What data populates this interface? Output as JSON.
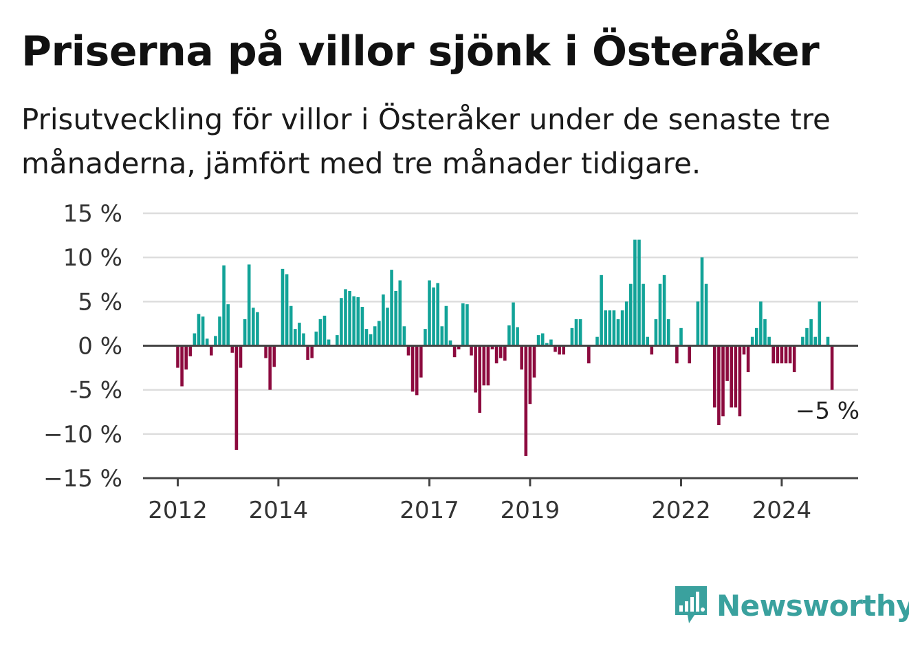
{
  "title": "Priserna på villor sjönk i Österåker",
  "subtitle": "Prisutveckling för villor i Österåker under de senaste tre månaderna, jämfört med tre månader tidigare.",
  "brand": {
    "name": "Newsworthy",
    "icon": "newsworthy-logo-icon"
  },
  "colors": {
    "positive": "#12a398",
    "negative": "#8c0a3e",
    "brand": "#3aa19e",
    "grid": "#dddddd",
    "baseline": "#444444"
  },
  "chart_data": {
    "type": "bar",
    "frequency": "monthly",
    "start": "2012-01",
    "ylim": [
      -15,
      15
    ],
    "yticks": [
      15,
      10,
      5,
      0,
      -5,
      -10,
      -15
    ],
    "ytick_labels": [
      "15 %",
      "10 %",
      "5 %",
      "0 %",
      "-5 %",
      "−10 %",
      "−15 %"
    ],
    "xtick_labels": [
      "2012",
      "2014",
      "2017",
      "2019",
      "2022",
      "2024"
    ],
    "last_value_label": "−5 %",
    "grid": true,
    "values": [
      -2.5,
      -4.6,
      -2.7,
      -1.2,
      1.4,
      3.6,
      3.3,
      0.8,
      -1.1,
      1.1,
      3.3,
      9.1,
      4.7,
      -0.8,
      -11.8,
      -2.5,
      3.0,
      9.2,
      4.3,
      3.8,
      0.0,
      -1.4,
      -5.0,
      -2.4,
      0.0,
      8.7,
      8.1,
      4.5,
      1.9,
      2.6,
      1.4,
      -1.6,
      -1.4,
      1.6,
      3.0,
      3.4,
      0.7,
      0.0,
      1.2,
      5.4,
      6.4,
      6.2,
      5.6,
      5.5,
      4.4,
      1.9,
      1.3,
      2.2,
      2.8,
      5.8,
      4.3,
      8.6,
      6.2,
      7.4,
      2.2,
      -1.1,
      -5.2,
      -5.6,
      -3.6,
      1.9,
      7.4,
      6.6,
      7.1,
      2.2,
      4.5,
      0.6,
      -1.3,
      -0.4,
      4.8,
      4.7,
      -1.1,
      -5.3,
      -7.6,
      -4.5,
      -4.5,
      -0.4,
      -2.0,
      -1.4,
      -1.7,
      2.3,
      4.9,
      2.1,
      -2.7,
      -12.5,
      -6.6,
      -3.6,
      1.2,
      1.4,
      0.3,
      0.7,
      -0.7,
      -1.0,
      -1.0,
      0.0,
      2.0,
      3.0,
      3.0,
      0.0,
      -2.0,
      0.0,
      1.0,
      8.0,
      4.0,
      4.0,
      4.0,
      3.0,
      4.0,
      5.0,
      7.0,
      12.0,
      12.0,
      7.0,
      1.0,
      -1.0,
      3.0,
      7.0,
      8.0,
      3.0,
      0.0,
      -2.0,
      2.0,
      0.0,
      -2.0,
      0.0,
      5.0,
      10.0,
      7.0,
      0.0,
      -7.0,
      -9.0,
      -8.0,
      -4.0,
      -7.0,
      -7.0,
      -8.0,
      -1.0,
      -3.0,
      1.0,
      2.0,
      5.0,
      3.0,
      1.0,
      -2.0,
      -2.0,
      -2.0,
      -2.0,
      -2.0,
      -3.0,
      0.0,
      1.0,
      2.0,
      3.0,
      1.0,
      5.0,
      0.0,
      1.0,
      -5.0
    ]
  }
}
